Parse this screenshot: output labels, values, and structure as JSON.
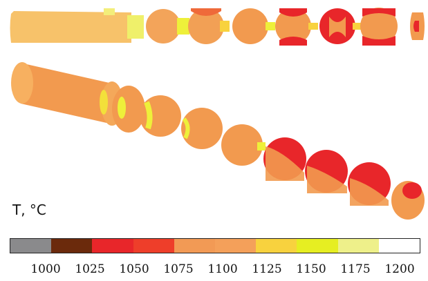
{
  "legend": {
    "title": "T, °C",
    "tick_labels": [
      "1000",
      "1025",
      "1050",
      "1075",
      "1100",
      "1125",
      "1150",
      "1175",
      "1200"
    ],
    "color_segments": [
      "#8a8a8c",
      "#6b2a0c",
      "#e8262a",
      "#ee3e2a",
      "#f29a55",
      "#f4a05a",
      "#f8d23e",
      "#e6ee22",
      "#eef08a",
      "#ffffff"
    ]
  },
  "colors": {
    "hot_red": "#e8262a",
    "orange": "#f29a4f",
    "light_orange": "#f7c26a",
    "yellow": "#eef03a"
  }
}
